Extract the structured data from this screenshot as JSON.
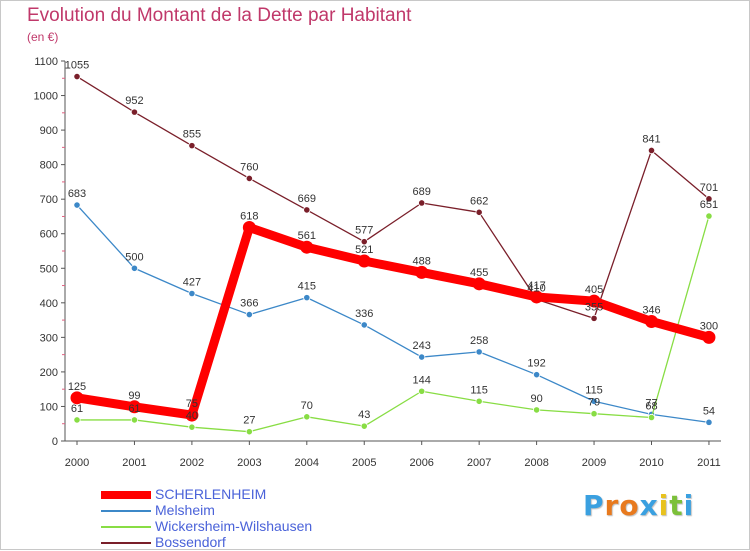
{
  "chart_data": {
    "type": "line",
    "title": "Evolution du Montant de la Dette par Habitant",
    "subtitle": "(en €)",
    "categories": [
      "2000",
      "2001",
      "2002",
      "2003",
      "2004",
      "2005",
      "2006",
      "2007",
      "2008",
      "2009",
      "2010",
      "2011"
    ],
    "ylim": [
      0,
      1100
    ],
    "yticks": [
      0,
      100,
      200,
      300,
      400,
      500,
      600,
      700,
      800,
      900,
      1000,
      1100
    ],
    "grid": false,
    "legend_position": "bottom-left",
    "series": [
      {
        "name": "SCHERLENHEIM",
        "color": "#ff0000",
        "values": [
          125,
          99,
          75,
          618,
          561,
          521,
          488,
          455,
          417,
          405,
          346,
          300
        ]
      },
      {
        "name": "Melsheim",
        "color": "#3c88c8",
        "values": [
          683,
          500,
          427,
          366,
          415,
          336,
          243,
          258,
          192,
          115,
          77,
          54
        ]
      },
      {
        "name": "Wickersheim-Wilshausen",
        "color": "#88dd44",
        "values": [
          61,
          61,
          40,
          27,
          70,
          43,
          144,
          115,
          90,
          79,
          68,
          651
        ]
      },
      {
        "name": "Bossendorf",
        "color": "#7a1f2a",
        "values": [
          1055,
          952,
          855,
          760,
          669,
          577,
          689,
          662,
          410,
          355,
          841,
          701
        ]
      }
    ]
  },
  "brand": {
    "letters": [
      "P",
      "r",
      "o",
      "x",
      "i",
      "t",
      "i"
    ],
    "colors": [
      "#3aa0e0",
      "#e87a1e",
      "#e87a1e",
      "#3aa0e0",
      "#e8c21e",
      "#7cc03a",
      "#3aa0e0"
    ]
  }
}
